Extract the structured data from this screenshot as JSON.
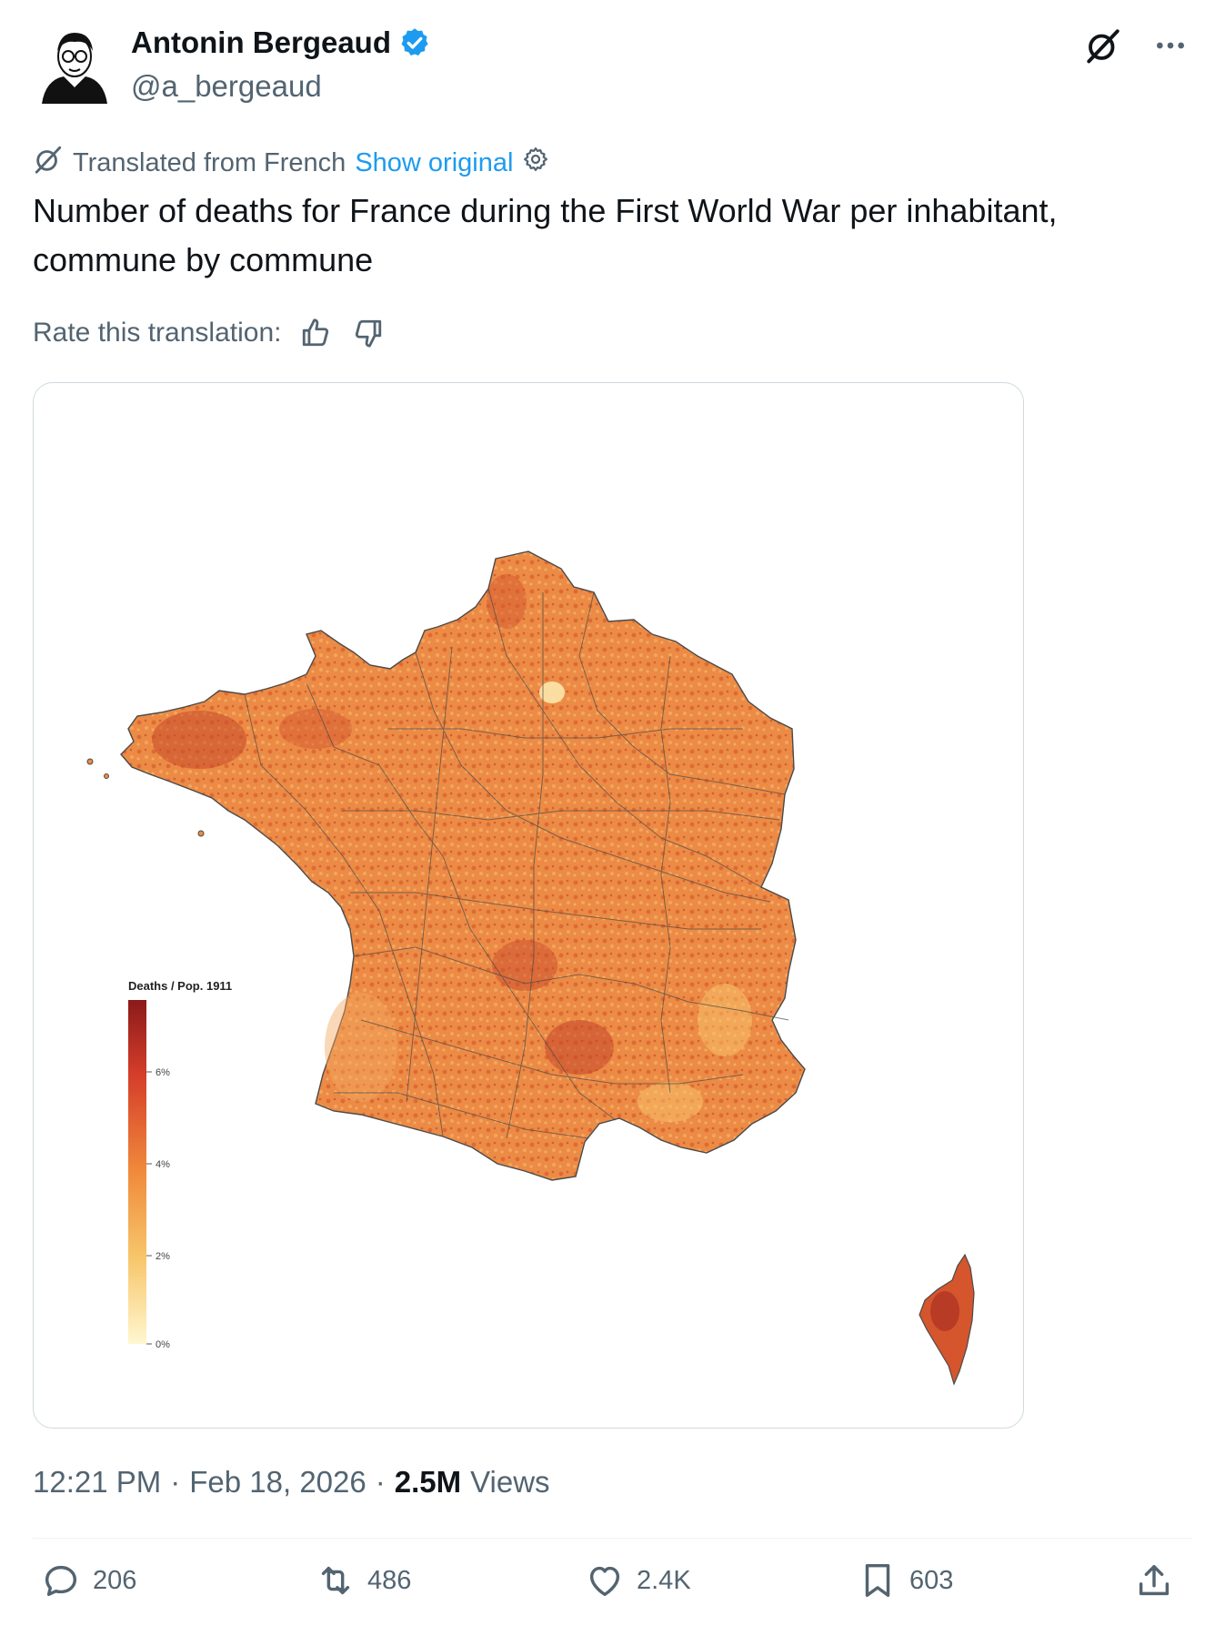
{
  "author": {
    "name": "Antonin Bergeaud",
    "handle": "@a_bergeaud",
    "verified": true
  },
  "translation": {
    "notice": "Translated from French",
    "show_original": "Show original",
    "rate_label": "Rate this translation:"
  },
  "tweet_text": "Number of deaths for France during the First World War per inhabitant, commune by commune",
  "media": {
    "legend_title": "Deaths / Pop. 1911",
    "legend_ticks": [
      "6%",
      "4%",
      "2%",
      "0%"
    ],
    "legend_colors": [
      "#8b1a1a",
      "#d53e2a",
      "#f08a3c",
      "#f7c66b",
      "#fff7d0"
    ],
    "map_fill": "#ec8b45",
    "map_dark": "#c94b2c",
    "map_border": "#4a4a4a"
  },
  "meta": {
    "time": "12:21 PM",
    "separator": "·",
    "date": "Feb 18, 2026",
    "views_count": "2.5M",
    "views_label": "Views"
  },
  "actions": {
    "replies": "206",
    "reposts": "486",
    "likes": "2.4K",
    "bookmarks": "603"
  },
  "colors": {
    "text": "#0f1419",
    "secondary": "#536471",
    "accent": "#1d9bf0",
    "border": "#cfd9de"
  },
  "icons": [
    "verified-badge-icon",
    "grok-icon",
    "more-icon",
    "translate-icon",
    "gear-icon",
    "thumbs-up-icon",
    "thumbs-down-icon",
    "reply-icon",
    "repost-icon",
    "like-icon",
    "bookmark-icon",
    "share-icon"
  ]
}
